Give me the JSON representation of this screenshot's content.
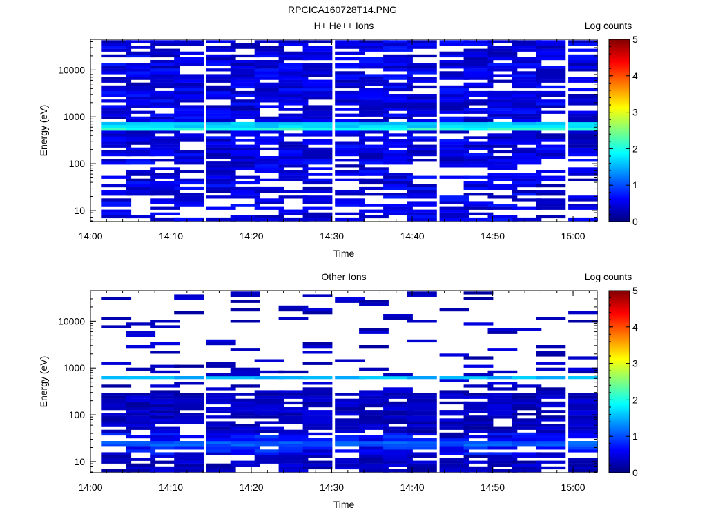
{
  "page_title": "RPCICA160728T14.PNG",
  "chart_data": [
    {
      "type": "heatmap",
      "title": "H+ He++ Ions",
      "xlabel": "Time",
      "ylabel": "Energy (eV)",
      "yscale": "log",
      "xlim": [
        "14:00",
        "15:03"
      ],
      "ylim": [
        5.8,
        45000
      ],
      "xticks": [
        "14:00",
        "14:10",
        "14:20",
        "14:30",
        "14:40",
        "14:50",
        "15:00"
      ],
      "yticks": [
        "10",
        "100",
        "1000",
        "10000"
      ],
      "colorbar": {
        "label": "Log counts",
        "range": [
          0,
          5
        ],
        "ticks": [
          "0",
          "1",
          "2",
          "3",
          "4",
          "5"
        ]
      },
      "time_bins": [
        "14:02",
        "14:05",
        "14:08",
        "14:11",
        "14:15",
        "14:18",
        "14:21",
        "14:24",
        "14:27",
        "14:31",
        "14:34",
        "14:37",
        "14:40",
        "14:44",
        "14:47",
        "14:50",
        "14:53",
        "14:56",
        "15:00"
      ],
      "features": [
        {
          "energy": 600,
          "log_counts": 2.2,
          "description_label": ""
        },
        {
          "energy": 700,
          "log_counts": 1.8,
          "description_label": ""
        }
      ],
      "energy_range_filled": [
        6,
        43000
      ],
      "typical_log_counts": 0.6
    },
    {
      "type": "heatmap",
      "title": "Other Ions",
      "xlabel": "Time",
      "ylabel": "Energy (eV)",
      "yscale": "log",
      "xlim": [
        "14:00",
        "15:03"
      ],
      "ylim": [
        5.8,
        45000
      ],
      "xticks": [
        "14:00",
        "14:10",
        "14:20",
        "14:30",
        "14:40",
        "14:50",
        "15:00"
      ],
      "yticks": [
        "10",
        "100",
        "1000",
        "10000"
      ],
      "colorbar": {
        "label": "Log counts",
        "range": [
          0,
          5
        ],
        "ticks": [
          "0",
          "1",
          "2",
          "3",
          "4",
          "5"
        ]
      },
      "time_bins": [
        "14:02",
        "14:05",
        "14:08",
        "14:11",
        "14:15",
        "14:18",
        "14:21",
        "14:24",
        "14:27",
        "14:31",
        "14:34",
        "14:37",
        "14:40",
        "14:44",
        "14:47",
        "14:50",
        "14:53",
        "14:56",
        "15:00"
      ],
      "features": [
        {
          "energy": 620,
          "log_counts": 1.7,
          "description_label": ""
        },
        {
          "energy": 25,
          "log_counts": 1.2,
          "description_label": ""
        }
      ],
      "energy_range_filled": [
        6,
        43000
      ],
      "typical_log_counts": 0.4
    }
  ],
  "colors": {
    "colormap": [
      "#00007f",
      "#0000ff",
      "#007fff",
      "#00ffff",
      "#7fff7f",
      "#ffff00",
      "#ff7f00",
      "#ff0000",
      "#7f0000"
    ],
    "background": "#ffffff",
    "axis": "#000000"
  }
}
